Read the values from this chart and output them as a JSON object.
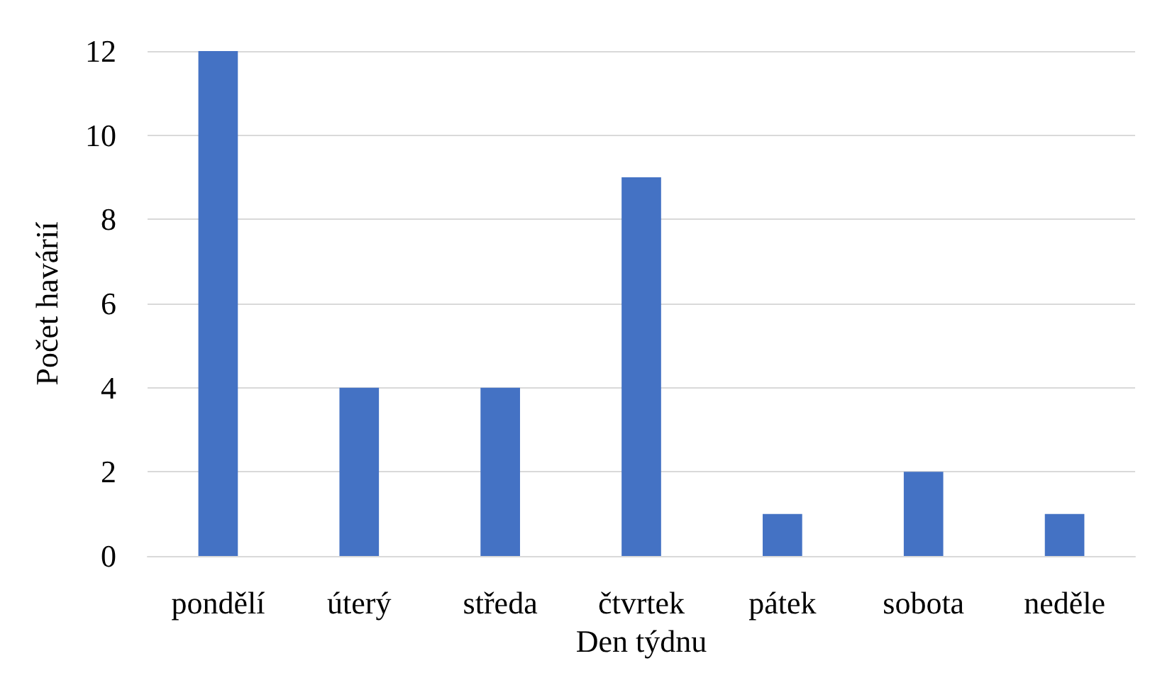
{
  "chart_data": {
    "type": "bar",
    "xlabel": "Den týdnu",
    "ylabel": "Počet havárií",
    "categories": [
      "pondělí",
      "úterý",
      "středa",
      "čtvrtek",
      "pátek",
      "sobota",
      "neděle"
    ],
    "values": [
      12,
      4,
      4,
      9,
      1,
      2,
      1
    ],
    "color": "#4472c4",
    "ylim": [
      0,
      12
    ],
    "yticks": [
      0,
      2,
      4,
      6,
      8,
      10,
      12
    ],
    "grid": "y"
  }
}
